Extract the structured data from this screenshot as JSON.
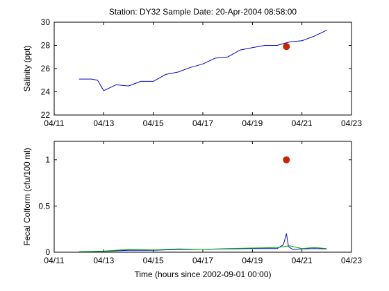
{
  "chart_data": [
    {
      "type": "line",
      "title": "Station: DY32  Sample Date: 20-Apr-2004 08:58:00",
      "xlabel": "",
      "ylabel": "Salinity (ppt)",
      "xlim": [
        "2004-04-11",
        "2004-04-23"
      ],
      "ylim": [
        22,
        30
      ],
      "x_ticks": [
        "04/11",
        "04/13",
        "04/15",
        "04/17",
        "04/19",
        "04/21",
        "04/23"
      ],
      "y_ticks": [
        "22",
        "24",
        "26",
        "28",
        "30"
      ],
      "grid": false,
      "series": [
        {
          "color": "#0000cc",
          "x": [
            "2004-04-12 00:00",
            "2004-04-12 12:00",
            "2004-04-12 18:00",
            "2004-04-13 00:00",
            "2004-04-13 12:00",
            "2004-04-14 00:00",
            "2004-04-14 12:00",
            "2004-04-15 00:00",
            "2004-04-15 12:00",
            "2004-04-16 00:00",
            "2004-04-16 12:00",
            "2004-04-17 00:00",
            "2004-04-17 12:00",
            "2004-04-18 00:00",
            "2004-04-18 12:00",
            "2004-04-19 00:00",
            "2004-04-19 12:00",
            "2004-04-20 00:00",
            "2004-04-20 12:00",
            "2004-04-21 00:00",
            "2004-04-21 12:00",
            "2004-04-22 00:00"
          ],
          "y": [
            25.1,
            25.1,
            25.0,
            24.1,
            24.6,
            24.5,
            24.9,
            24.9,
            25.5,
            25.7,
            26.1,
            26.4,
            26.9,
            27.0,
            27.6,
            27.8,
            28.0,
            28.0,
            28.3,
            28.4,
            28.8,
            29.3
          ]
        }
      ],
      "points": [
        {
          "x": "2004-04-20 08:58",
          "y": 27.9,
          "color": "#cc2200"
        }
      ]
    },
    {
      "type": "line",
      "title": "",
      "xlabel": "Time (hours since 2002-09-01 00:00)",
      "ylabel": "Fecal Colform (cfu/100 ml)",
      "xlim": [
        "2004-04-11",
        "2004-04-23"
      ],
      "ylim": [
        0,
        1.2
      ],
      "x_ticks": [
        "04/11",
        "04/13",
        "04/15",
        "04/17",
        "04/19",
        "04/21",
        "04/23"
      ],
      "y_ticks": [
        "0",
        "0.5",
        "1"
      ],
      "grid": false,
      "series": [
        {
          "color": "#0000cc",
          "x": [
            "2004-04-12 00:00",
            "2004-04-13 00:00",
            "2004-04-14 00:00",
            "2004-04-15 00:00",
            "2004-04-16 00:00",
            "2004-04-17 00:00",
            "2004-04-18 00:00",
            "2004-04-19 00:00",
            "2004-04-20 00:00",
            "2004-04-20 06:00",
            "2004-04-20 09:00",
            "2004-04-20 11:00",
            "2004-04-20 15:00",
            "2004-04-21 00:00",
            "2004-04-21 12:00",
            "2004-04-22 00:00"
          ],
          "y": [
            0.005,
            0.01,
            0.02,
            0.02,
            0.03,
            0.03,
            0.035,
            0.04,
            0.04,
            0.08,
            0.2,
            0.06,
            0.03,
            0.035,
            0.04,
            0.035
          ]
        },
        {
          "color": "#00aa00",
          "x": [
            "2004-04-12 00:00",
            "2004-04-13 00:00",
            "2004-04-14 00:00",
            "2004-04-15 00:00",
            "2004-04-16 00:00",
            "2004-04-17 00:00",
            "2004-04-18 00:00",
            "2004-04-19 00:00",
            "2004-04-20 00:00",
            "2004-04-20 12:00",
            "2004-04-21 00:00",
            "2004-04-21 12:00",
            "2004-04-22 00:00"
          ],
          "y": [
            0.004,
            0.012,
            0.03,
            0.025,
            0.035,
            0.03,
            0.04,
            0.045,
            0.05,
            0.07,
            0.04,
            0.05,
            0.04
          ]
        }
      ],
      "points": [
        {
          "x": "2004-04-20 08:58",
          "y": 1.0,
          "color": "#cc2200"
        }
      ]
    }
  ]
}
